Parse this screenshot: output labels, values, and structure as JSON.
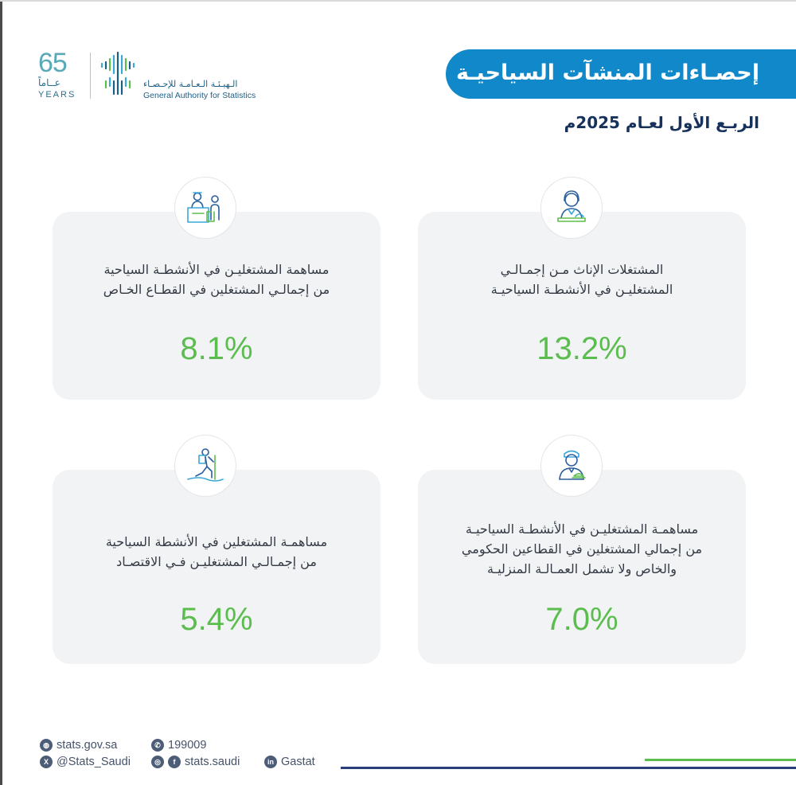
{
  "branding": {
    "anniversary_number": "65",
    "anniversary_ar": "عــاماً",
    "anniversary_en": "YEARS",
    "authority_ar": "الـهيـئـة الـعـامـة للإحـصـاء",
    "authority_en": "General Authority for Statistics"
  },
  "header": {
    "title": "إحصـاءات المنشآت السياحيـة",
    "subtitle": "الربـع الأول لعـام 2025م"
  },
  "cards": [
    {
      "icon": "female-employee-icon",
      "label_lines": [
        "المشتغلات الإناث مـن إجمـالـي",
        "المشتغليـن في الأنشطـة السياحيـة"
      ],
      "value": "13.2%"
    },
    {
      "icon": "reception-desk-icon",
      "label_lines": [
        "مساهمة المشتغليـن في الأنشطـة السياحية",
        "من إجمالـي المشتغلين في القطـاع الخـاص"
      ],
      "value": "8.1%"
    },
    {
      "icon": "bellhop-icon",
      "label_lines": [
        "مساهمـة المشتغليـن في الأنشطـة السياحيـة",
        "من إجمالي المشتغلين في القطاعين الحكومي",
        "والخاص ولا تشمل العمـالـة المنزليـة"
      ],
      "value": "7.0%"
    },
    {
      "icon": "hiker-icon",
      "label_lines": [
        "مساهمـة المشتغلين في الأنشطة السياحية",
        "من إجمـالـي المشتغليـن فـي الاقتصـاد"
      ],
      "value": "5.4%"
    }
  ],
  "chart_data": {
    "type": "table",
    "categories": [
      "المشتغلات الإناث مـن إجمـالـي المشتغليـن في الأنشطـة السياحيـة",
      "مساهمة المشتغليـن في الأنشطـة السياحية من إجمالـي المشتغلين في القطـاع الخـاص",
      "مساهمـة المشتغليـن في الأنشطـة السياحيـة من إجمالي المشتغلين في القطاعين الحكومي والخاص ولا تشمل العمـالـة المنزليـة",
      "مساهمـة المشتغلين في الأنشطة السياحية من إجمـالـي المشتغليـن فـي الاقتصـاد"
    ],
    "values": [
      13.2,
      8.1,
      7.0,
      5.4
    ],
    "title": "إحصـاءات المنشآت السياحيـة"
  },
  "footer": {
    "website": "stats.gov.sa",
    "phone": "199009",
    "x_handle": "@Stats_Saudi",
    "social_handle": "stats.saudi",
    "linkedin": "Gastat"
  },
  "colors": {
    "primary_blue": "#1188c9",
    "navy": "#16325c",
    "value_green": "#5cbd4f",
    "card_bg": "#f2f3f5"
  }
}
